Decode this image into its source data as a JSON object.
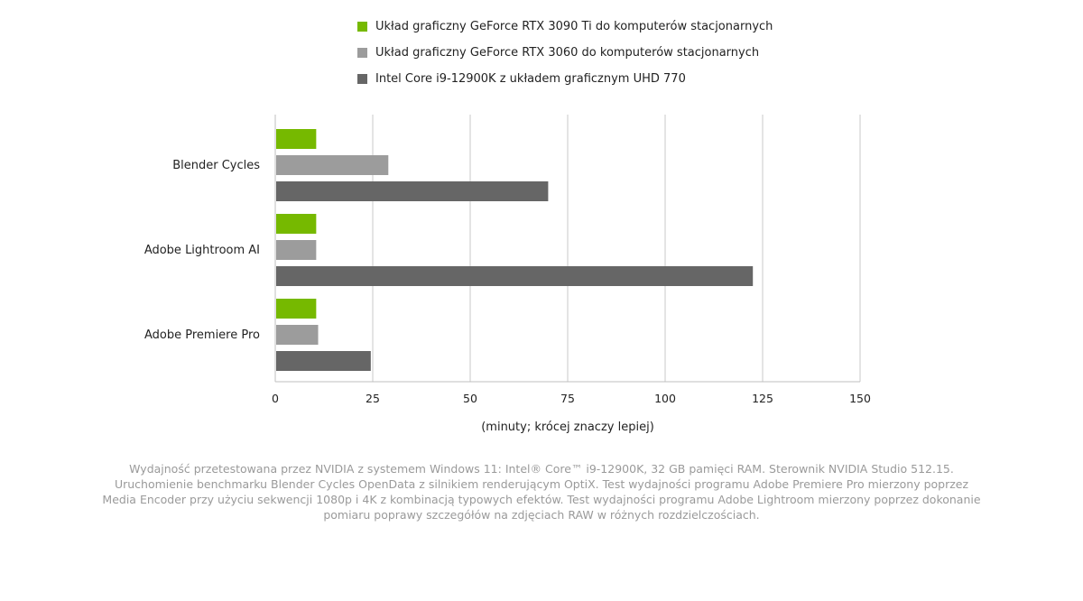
{
  "chart_data": {
    "type": "bar",
    "orientation": "horizontal",
    "categories": [
      "Blender Cycles",
      "Adobe Lightroom AI",
      "Adobe Premiere Pro"
    ],
    "series": [
      {
        "name": "Układ graficzny GeForce RTX 3090 Ti do komputerów stacjonarnych",
        "color": "#76b900",
        "values": [
          10.5,
          10.5,
          10.5
        ]
      },
      {
        "name": "Układ graficzny GeForce RTX 3060 do komputerów stacjonarnych",
        "color": "#9c9c9c",
        "values": [
          29,
          10.5,
          11
        ]
      },
      {
        "name": "Intel Core i9-12900K z układem graficznym UHD 770",
        "color": "#666666",
        "values": [
          70,
          122.5,
          24.5
        ]
      }
    ],
    "xticks": [
      0,
      25,
      50,
      75,
      100,
      125,
      150
    ],
    "xlim": [
      0,
      150
    ],
    "xlabel": "(minuty; krócej znaczy lepiej)",
    "ylabel": "",
    "title": "",
    "grid": "vertical",
    "legend_position": "top-center"
  },
  "footnote": "Wydajność przetestowana przez NVIDIA z systemem Windows 11: Intel® Core™ i9-12900K, 32 GB pamięci RAM. Sterownik NVIDIA Studio 512.15. Uruchomienie benchmarku Blender Cycles OpenData z silnikiem renderującym OptiX. Test wydajności programu Adobe Premiere Pro mierzony poprzez Media Encoder przy użyciu sekwencji 1080p i 4K z kombinacją typowych efektów. Test wydajności programu Adobe Lightroom mierzony poprzez dokonanie pomiaru poprawy szczegółów na zdjęciach RAW w różnych rozdzielczościach."
}
